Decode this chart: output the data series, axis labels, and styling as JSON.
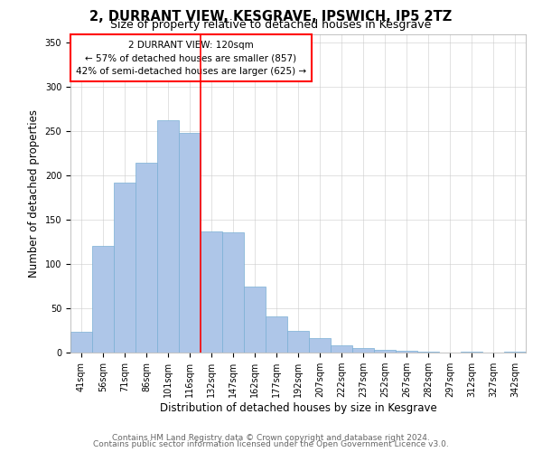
{
  "title": "2, DURRANT VIEW, KESGRAVE, IPSWICH, IP5 2TZ",
  "subtitle": "Size of property relative to detached houses in Kesgrave",
  "xlabel": "Distribution of detached houses by size in Kesgrave",
  "ylabel": "Number of detached properties",
  "bar_labels": [
    "41sqm",
    "56sqm",
    "71sqm",
    "86sqm",
    "101sqm",
    "116sqm",
    "132sqm",
    "147sqm",
    "162sqm",
    "177sqm",
    "192sqm",
    "207sqm",
    "222sqm",
    "237sqm",
    "252sqm",
    "267sqm",
    "282sqm",
    "297sqm",
    "312sqm",
    "327sqm",
    "342sqm"
  ],
  "bar_values": [
    24,
    121,
    192,
    214,
    262,
    248,
    137,
    136,
    75,
    41,
    25,
    16,
    8,
    5,
    3,
    2,
    1,
    0,
    1,
    0,
    1
  ],
  "bar_color": "#aec6e8",
  "bar_edge_color": "#7aafd4",
  "vline_x": 5.5,
  "vline_color": "red",
  "annotation_title": "2 DURRANT VIEW: 120sqm",
  "annotation_line1": "← 57% of detached houses are smaller (857)",
  "annotation_line2": "42% of semi-detached houses are larger (625) →",
  "annotation_box_color": "white",
  "annotation_box_edge": "red",
  "footer1": "Contains HM Land Registry data © Crown copyright and database right 2024.",
  "footer2": "Contains public sector information licensed under the Open Government Licence v3.0.",
  "ylim": [
    0,
    360
  ],
  "title_fontsize": 10.5,
  "subtitle_fontsize": 9,
  "axis_label_fontsize": 8.5,
  "tick_fontsize": 7,
  "annotation_fontsize": 7.5,
  "footer_fontsize": 6.5
}
